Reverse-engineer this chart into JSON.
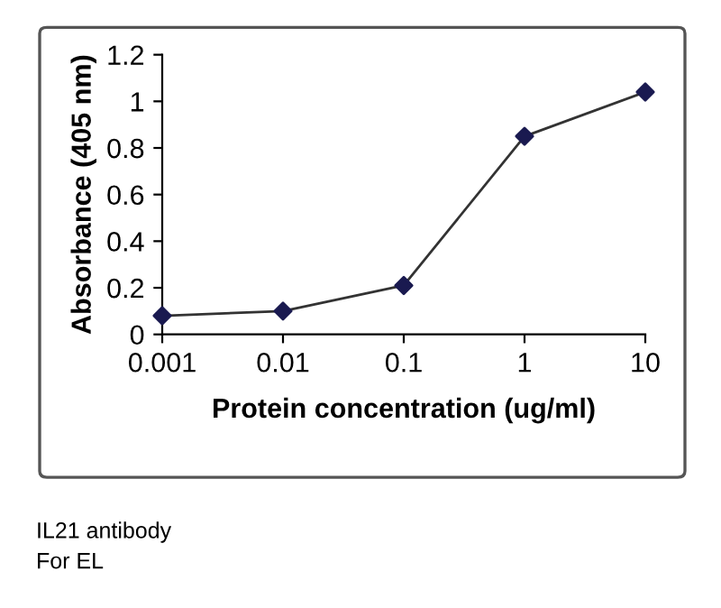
{
  "chart_data": {
    "type": "line",
    "xlabel": "Protein concentration (ug/ml)",
    "ylabel": "Absorbance (405 nm)",
    "x": [
      0.001,
      0.01,
      0.1,
      1,
      10
    ],
    "series": [
      {
        "color": "#1a1a50",
        "values": [
          0.08,
          0.1,
          0.21,
          0.85,
          1.04
        ]
      }
    ],
    "log": "x",
    "xlim": [
      0.001,
      10
    ],
    "xticks": [
      0.001,
      0.01,
      0.1,
      1,
      10
    ],
    "ylim": [
      0,
      1.2
    ],
    "yticks": [
      0,
      0.2,
      0.4,
      0.6,
      0.8,
      1,
      1.2
    ],
    "marker": "diamond",
    "line_style": "solid",
    "grid": false,
    "legend": false,
    "annotations": [
      "IL21 antibody",
      "For EL"
    ]
  }
}
